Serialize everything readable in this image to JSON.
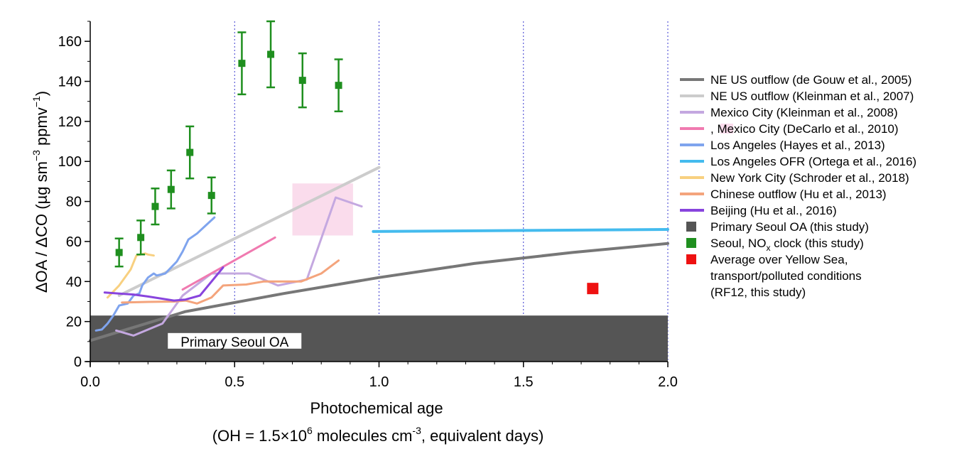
{
  "chart_data": {
    "type": "line",
    "xlabel": "Photochemical age",
    "xlabel_sub": {
      "prefix": "(OH = 1.5×10",
      "sup1": "6",
      "middle": " molecules cm",
      "sup2": "-3",
      "suffix": ", equivalent days)"
    },
    "ylabel": {
      "prefix": "ΔOA / ΔCO (µg sm",
      "sup1": "−3",
      "middle": " ppmv",
      "sup2": "−1",
      "suffix": ")"
    },
    "xlim": [
      0,
      2
    ],
    "ylim": [
      0,
      170
    ],
    "x_ticks": [
      "0.0",
      "0.5",
      "1.0",
      "1.5",
      "2.0"
    ],
    "x_tick_values": [
      0,
      0.5,
      1.0,
      1.5,
      2.0
    ],
    "y_ticks": [
      "0",
      "20",
      "40",
      "60",
      "80",
      "100",
      "120",
      "140",
      "160"
    ],
    "y_tick_values": [
      0,
      20,
      40,
      60,
      80,
      100,
      120,
      140,
      160
    ],
    "grid": "vertical dotted lines at x = 0.5, 1.0, 1.5, 2.0",
    "legend_position": "right, outside plot",
    "primary_band": {
      "ymin": 0,
      "ymax": 23,
      "color": "#555555",
      "label": "Primary Seoul OA"
    },
    "series": [
      {
        "name": "NE US outflow (de Gouw et al., 2005)",
        "color": "#777777",
        "width": 4,
        "points": [
          [
            0,
            10.5
          ],
          [
            0.33,
            25
          ],
          [
            0.67,
            34
          ],
          [
            1.0,
            42
          ],
          [
            1.33,
            49
          ],
          [
            1.67,
            54.5
          ],
          [
            2.0,
            59
          ]
        ]
      },
      {
        "name": "NE US outflow (Kleinman et al., 2007)",
        "color": "#cccccc",
        "width": 4,
        "points": [
          [
            0.1,
            33
          ],
          [
            1.0,
            97
          ]
        ]
      },
      {
        "name": "Mexico City (Kleinman et al., 2008)",
        "color": "#c4a8e0",
        "width": 3,
        "points": [
          [
            0.09,
            15.5
          ],
          [
            0.15,
            13
          ],
          [
            0.25,
            19
          ],
          [
            0.32,
            33
          ],
          [
            0.42,
            44
          ],
          [
            0.55,
            44
          ],
          [
            0.65,
            38
          ],
          [
            0.75,
            41
          ],
          [
            0.85,
            82
          ],
          [
            0.94,
            77.5
          ]
        ]
      },
      {
        "name": "Mexico City (DeCarlo et al., 2010)",
        "color": "#f07ab0",
        "width": 3,
        "points": [
          [
            0.32,
            36
          ],
          [
            0.64,
            62
          ]
        ],
        "box": {
          "x": [
            0.7,
            0.91
          ],
          "y": [
            63,
            89
          ],
          "color": "#fadcec"
        }
      },
      {
        "name": "Los Angeles (Hayes et al., 2013)",
        "color": "#7fa4ee",
        "width": 3,
        "points": [
          [
            0.02,
            15.5
          ],
          [
            0.04,
            16
          ],
          [
            0.06,
            19
          ],
          [
            0.08,
            23
          ],
          [
            0.1,
            28
          ],
          [
            0.13,
            29
          ],
          [
            0.15,
            33
          ],
          [
            0.17,
            34
          ],
          [
            0.18,
            38
          ],
          [
            0.2,
            42
          ],
          [
            0.22,
            44
          ],
          [
            0.23,
            43
          ],
          [
            0.26,
            44
          ],
          [
            0.28,
            47
          ],
          [
            0.3,
            50
          ],
          [
            0.32,
            55
          ],
          [
            0.34,
            61
          ],
          [
            0.37,
            64
          ],
          [
            0.4,
            68
          ],
          [
            0.43,
            72
          ]
        ]
      },
      {
        "name": "Los Angeles OFR (Ortega et al., 2016)",
        "color": "#44bbee",
        "width": 4,
        "points": [
          [
            0.98,
            65
          ],
          [
            2.0,
            66
          ]
        ]
      },
      {
        "name": "New York City (Schroder et al., 2018)",
        "color": "#f8d080",
        "width": 3,
        "points": [
          [
            0.06,
            32
          ],
          [
            0.1,
            38
          ],
          [
            0.14,
            46
          ],
          [
            0.16,
            53
          ],
          [
            0.19,
            54
          ],
          [
            0.2,
            53.5
          ],
          [
            0.22,
            53
          ]
        ]
      },
      {
        "name": "Chinese outflow (Hu et al., 2013)",
        "color": "#f4a47c",
        "width": 3,
        "points": [
          [
            0.11,
            29.5
          ],
          [
            0.2,
            29.8
          ],
          [
            0.29,
            30
          ],
          [
            0.33,
            30.5
          ],
          [
            0.37,
            29
          ],
          [
            0.42,
            32
          ],
          [
            0.46,
            38
          ],
          [
            0.54,
            38.5
          ],
          [
            0.6,
            40
          ],
          [
            0.67,
            40
          ],
          [
            0.73,
            40
          ],
          [
            0.8,
            44
          ],
          [
            0.86,
            50.5
          ]
        ]
      },
      {
        "name": "Beijing (Hu et al., 2016)",
        "color": "#8844dd",
        "width": 3,
        "points": [
          [
            0.05,
            34.5
          ],
          [
            0.1,
            34
          ],
          [
            0.15,
            33.5
          ],
          [
            0.2,
            32.5
          ],
          [
            0.29,
            30.5
          ],
          [
            0.33,
            31
          ],
          [
            0.38,
            33
          ],
          [
            0.46,
            47
          ]
        ]
      }
    ],
    "seoul_nox_clock": {
      "name": "Seoul, NOx clock (this study)",
      "color": "#1f8f1f",
      "points": [
        {
          "x": 0.1,
          "y": 54.5,
          "err": 7
        },
        {
          "x": 0.175,
          "y": 62,
          "err": 8.5
        },
        {
          "x": 0.225,
          "y": 77.5,
          "err": 9
        },
        {
          "x": 0.28,
          "y": 86,
          "err": 9.5
        },
        {
          "x": 0.345,
          "y": 104.5,
          "err": 13
        },
        {
          "x": 0.42,
          "y": 83,
          "err": 9
        },
        {
          "x": 0.525,
          "y": 149,
          "err": 15.5
        },
        {
          "x": 0.625,
          "y": 153.5,
          "err": 16.5
        },
        {
          "x": 0.735,
          "y": 140.5,
          "err": 13.5
        },
        {
          "x": 0.86,
          "y": 138,
          "err": 13
        }
      ]
    },
    "yellow_sea": {
      "name": "Average over Yellow Sea, transport/polluted conditions (RF12, this study)",
      "color": "#ee1111",
      "x": 1.74,
      "y": 36.5
    },
    "legend": [
      {
        "kind": "line",
        "color": "#777777",
        "label": "NE US outflow (de Gouw et al., 2005)"
      },
      {
        "kind": "line",
        "color": "#cccccc",
        "label": "NE US outflow (Kleinman et al., 2007)"
      },
      {
        "kind": "line",
        "color": "#c4a8e0",
        "label": "Mexico City (Kleinman et al., 2008)"
      },
      {
        "kind": "line+box",
        "color": "#f07ab0",
        "box_color": "#fadcec",
        "label": ",      Mexico City (DeCarlo et al., 2010)"
      },
      {
        "kind": "line",
        "color": "#7fa4ee",
        "label": "Los Angeles (Hayes et al., 2013)"
      },
      {
        "kind": "line",
        "color": "#44bbee",
        "label": "Los Angeles OFR (Ortega et al., 2016)"
      },
      {
        "kind": "line",
        "color": "#f8d080",
        "label": "New York City (Schroder et al., 2018)"
      },
      {
        "kind": "line",
        "color": "#f4a47c",
        "label": "Chinese outflow (Hu et al., 2013)"
      },
      {
        "kind": "line",
        "color": "#8844dd",
        "label": "Beijing (Hu et al., 2016)"
      },
      {
        "kind": "square",
        "color": "#555555",
        "label": "Primary Seoul OA (this study)"
      },
      {
        "kind": "square",
        "color": "#1f8f1f",
        "label_prefix": "Seoul, NO",
        "label_sub": "x",
        "label_suffix": " clock (this study)"
      },
      {
        "kind": "square",
        "color": "#ee1111",
        "label_lines": [
          "Average over Yellow Sea,",
          "transport/polluted conditions",
          "(RF12, this study)"
        ]
      }
    ]
  }
}
